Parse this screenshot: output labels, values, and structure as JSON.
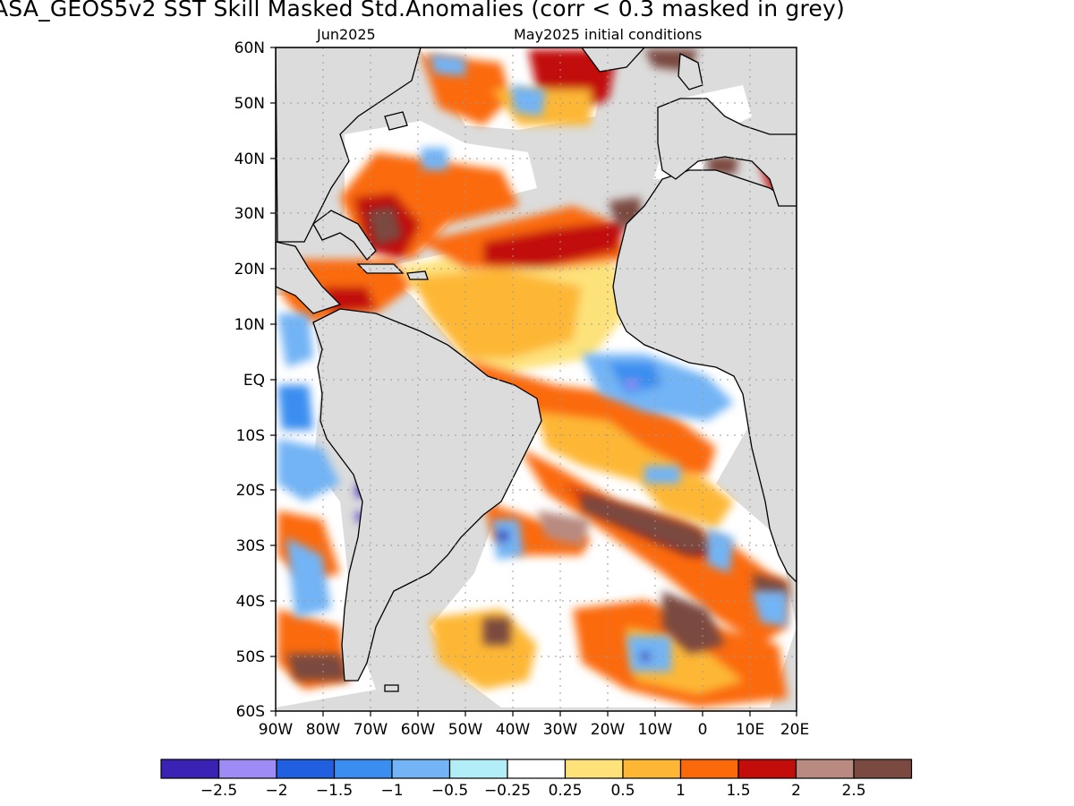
{
  "title": "ASA_GEOS5v2   SST Skill Masked Std.Anomalies (corr < 0.3 masked in grey)",
  "subtitle_left": "Jun2025",
  "subtitle_right": "May2025 initial conditions",
  "lat_labels": [
    "60N",
    "50N",
    "40N",
    "30N",
    "20N",
    "10N",
    "EQ",
    "10S",
    "20S",
    "30S",
    "40S",
    "50S",
    "60S"
  ],
  "lon_labels": [
    "90W",
    "80W",
    "70W",
    "60W",
    "50W",
    "40W",
    "30W",
    "20W",
    "10W",
    "0",
    "10E",
    "20E"
  ],
  "colorbar": {
    "colors": [
      "#3a22b5",
      "#9e8cf4",
      "#1f5fe0",
      "#3a8ef0",
      "#72b4f5",
      "#b2eef8",
      "#ffffff",
      "#fde27a",
      "#fdb734",
      "#fb6a0a",
      "#c20d0a",
      "#b88a80",
      "#7a4a40"
    ],
    "labels": [
      "−2.5",
      "−2",
      "−1.5",
      "−1",
      "−0.5",
      "−0.25",
      "0.25",
      "0.5",
      "1",
      "1.5",
      "2",
      "2.5"
    ]
  },
  "map_colors": {
    "land": "#dcdcdc",
    "masked": "#dcdcdc",
    "coast": "#000000"
  }
}
